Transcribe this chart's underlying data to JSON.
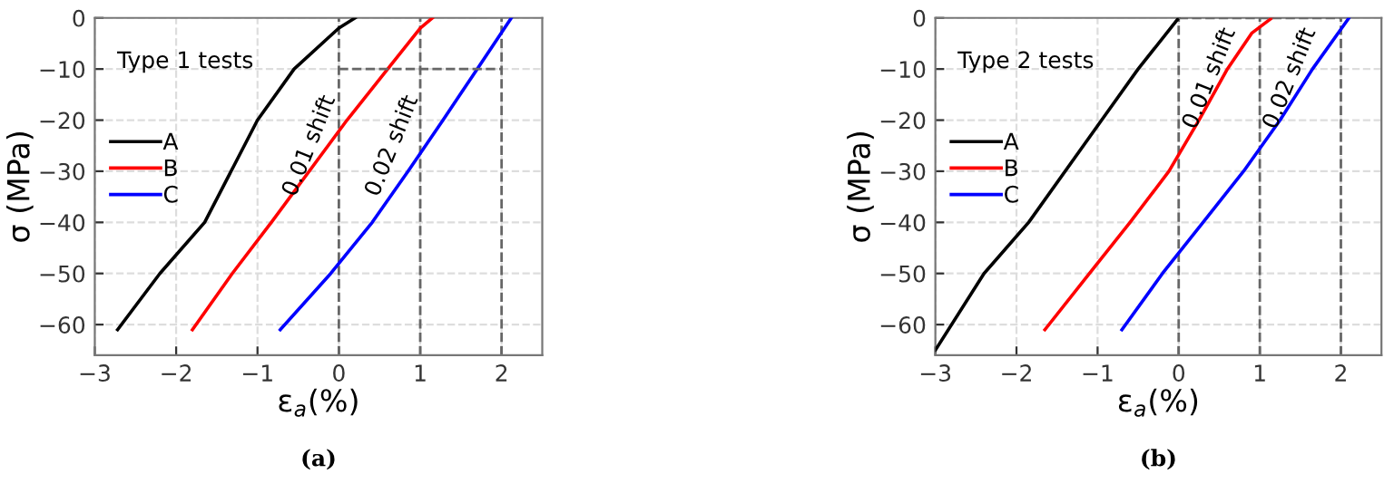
{
  "chart_data": [
    {
      "type": "line",
      "title": "(a)",
      "xlabel": "ε$_{a}$(%)",
      "ylabel": "σ (MPa)",
      "xlim": [
        -3,
        2.5
      ],
      "ylim": [
        -66,
        0
      ],
      "xticks": [
        -3,
        -2,
        -1,
        0,
        1,
        2
      ],
      "yticks": [
        -60,
        -50,
        -40,
        -30,
        -20,
        -10,
        0
      ],
      "grid": true,
      "legend": "left",
      "annotations": [
        "Type 1 tests",
        "0.01 shift",
        "0.02 shift"
      ],
      "ref_lines": [
        {
          "axis": "x",
          "value": 0,
          "color": "#666666",
          "line_style": "dashed"
        },
        {
          "axis": "x",
          "value": 1,
          "color": "#666666",
          "line_style": "dashed"
        },
        {
          "axis": "x",
          "value": 2,
          "color": "#666666",
          "line_style": "dashed"
        }
      ],
      "series": [
        {
          "name": "A",
          "color": "#000000",
          "x": [
            -2.72,
            -2.2,
            -1.65,
            -1.0,
            -0.55,
            0.0,
            0.2
          ],
          "values": [
            -61,
            -50,
            -40,
            -20,
            -10,
            -2,
            0
          ]
        },
        {
          "name": "B",
          "color": "#ff0000",
          "x": [
            -1.8,
            -1.31,
            -0.83,
            0.1,
            0.6,
            1.0,
            1.15
          ],
          "values": [
            -61,
            -50,
            -40,
            -20,
            -10,
            -2,
            0
          ]
        },
        {
          "name": "C",
          "color": "#0000ff",
          "x": [
            -0.72,
            -0.1,
            0.41,
            0.85,
            1.28,
            1.7,
            2.12
          ],
          "values": [
            -61,
            -50,
            -40,
            -30,
            -20,
            -10,
            0
          ]
        },
        {
          "color": "#666666",
          "line_style": "dashed",
          "x": [
            0,
            2
          ],
          "values": [
            -10,
            -10
          ]
        }
      ]
    },
    {
      "type": "line",
      "title": "(b)",
      "xlabel": "ε$_{a}$(%)",
      "ylabel": "σ (MPa)",
      "xlim": [
        -3,
        2.5
      ],
      "ylim": [
        -66,
        0
      ],
      "xticks": [
        -3,
        -2,
        -1,
        0,
        1,
        2
      ],
      "yticks": [
        -60,
        -50,
        -40,
        -30,
        -20,
        -10,
        0
      ],
      "grid": true,
      "legend": "left",
      "annotations": [
        "Type 2 tests",
        "0.01 shift",
        "0.02 shift"
      ],
      "ref_lines": [
        {
          "axis": "x",
          "value": 0,
          "color": "#666666",
          "line_style": "dashed"
        },
        {
          "axis": "x",
          "value": 1,
          "color": "#666666",
          "line_style": "dashed"
        },
        {
          "axis": "x",
          "value": 2,
          "color": "#666666",
          "line_style": "dashed"
        }
      ],
      "series": [
        {
          "name": "A",
          "color": "#000000",
          "x": [
            -3.0,
            -2.4,
            -1.85,
            -0.95,
            -0.5,
            0.0
          ],
          "values": [
            -65,
            -50,
            -40,
            -20,
            -10,
            0
          ]
        },
        {
          "name": "B",
          "color": "#ff0000",
          "x": [
            -1.65,
            -1.1,
            -0.6,
            -0.12,
            0.25,
            0.6,
            0.9,
            1.15
          ],
          "values": [
            -61,
            -50,
            -40,
            -30,
            -20,
            -10,
            -3,
            0
          ]
        },
        {
          "name": "C",
          "color": "#0000ff",
          "x": [
            -0.7,
            -0.2,
            0.3,
            0.8,
            1.25,
            1.65,
            2.1
          ],
          "values": [
            -61,
            -50,
            -40,
            -30,
            -20,
            -10,
            0
          ]
        },
        {
          "color": "#666666",
          "line_style": "dashed",
          "x": [
            0,
            2
          ],
          "values": [
            0,
            0
          ]
        }
      ]
    }
  ]
}
